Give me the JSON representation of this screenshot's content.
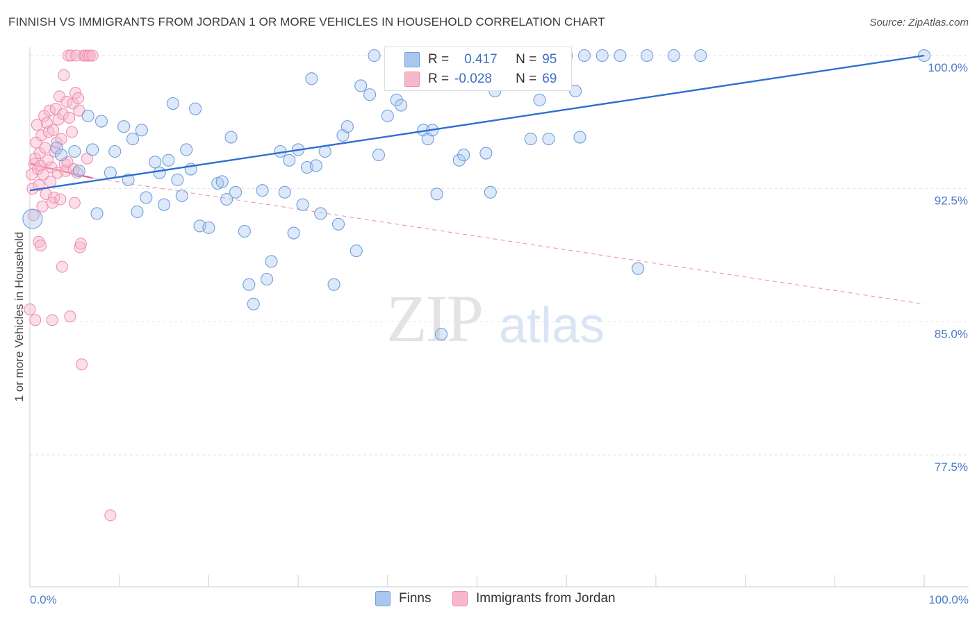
{
  "header": {
    "title": "FINNISH VS IMMIGRANTS FROM JORDAN 1 OR MORE VEHICLES IN HOUSEHOLD CORRELATION CHART",
    "source": "Source: ZipAtlas.com"
  },
  "watermark": {
    "zip": "ZIP",
    "atlas": "atlas"
  },
  "legend": {
    "series": [
      {
        "r_label": "R =",
        "r_value": "0.417",
        "n_label": "N =",
        "n_value": "95",
        "color": "#a9c6ee"
      },
      {
        "r_label": "R =",
        "r_value": "-0.028",
        "n_label": "N =",
        "n_value": "69",
        "color": "#f7b8cb"
      }
    ]
  },
  "bottom_legend": [
    "Finns",
    "Immigrants from Jordan"
  ],
  "chart_data": {
    "type": "scatter",
    "title": "FINNISH VS IMMIGRANTS FROM JORDAN 1 OR MORE VEHICLES IN HOUSEHOLD CORRELATION CHART",
    "ylabel": "1 or more Vehicles in Household",
    "xlabel": "",
    "xlim": [
      0,
      100
    ],
    "ylim": [
      71,
      101.5
    ],
    "x_tick_labels": [
      "0.0%",
      "100.0%"
    ],
    "y_ticks": [
      {
        "value": 100,
        "label": "100.0%"
      },
      {
        "value": 92.5,
        "label": "92.5%"
      },
      {
        "value": 85,
        "label": "85.0%"
      },
      {
        "value": 77.5,
        "label": "77.5%"
      }
    ],
    "grid": true,
    "legend_position": "top-center",
    "series": [
      {
        "name": "Finns",
        "color": "#6f9fdc",
        "fill": "#a9c6ee",
        "trend": {
          "x": [
            0,
            100
          ],
          "y": [
            92.4,
            100.0
          ],
          "style": "solid"
        },
        "points": [
          [
            0.3,
            90.8
          ],
          [
            3,
            94.8
          ],
          [
            3.5,
            94.4
          ],
          [
            5,
            94.6
          ],
          [
            5.5,
            93.5
          ],
          [
            6.5,
            96.6
          ],
          [
            7,
            94.7
          ],
          [
            7.5,
            91.1
          ],
          [
            8,
            96.3
          ],
          [
            9,
            93.4
          ],
          [
            9.5,
            94.6
          ],
          [
            10.5,
            96
          ],
          [
            11,
            93
          ],
          [
            11.5,
            95.3
          ],
          [
            12,
            91.2
          ],
          [
            12.5,
            95.8
          ],
          [
            13,
            92
          ],
          [
            14,
            94
          ],
          [
            14.5,
            93.4
          ],
          [
            15,
            91.6
          ],
          [
            15.5,
            94.1
          ],
          [
            16,
            97.3
          ],
          [
            16.5,
            93
          ],
          [
            17,
            92.1
          ],
          [
            17.5,
            94.7
          ],
          [
            18,
            93.6
          ],
          [
            18.5,
            97
          ],
          [
            19,
            90.4
          ],
          [
            20,
            90.3
          ],
          [
            21,
            92.8
          ],
          [
            21.5,
            92.9
          ],
          [
            22,
            91.9
          ],
          [
            22.5,
            95.4
          ],
          [
            23,
            92.3
          ],
          [
            24,
            90.1
          ],
          [
            24.5,
            87.1
          ],
          [
            25,
            86
          ],
          [
            26,
            92.4
          ],
          [
            26.5,
            87.4
          ],
          [
            27,
            88.4
          ],
          [
            28,
            94.6
          ],
          [
            28.5,
            92.3
          ],
          [
            29,
            94.1
          ],
          [
            29.5,
            90
          ],
          [
            30,
            94.7
          ],
          [
            30.5,
            91.6
          ],
          [
            31,
            93.7
          ],
          [
            31.5,
            98.7
          ],
          [
            32,
            93.8
          ],
          [
            32.5,
            91.1
          ],
          [
            33,
            94.6
          ],
          [
            34,
            87.1
          ],
          [
            34.5,
            90.5
          ],
          [
            35,
            95.5
          ],
          [
            35.5,
            96
          ],
          [
            36.5,
            89
          ],
          [
            37,
            98.3
          ],
          [
            38,
            97.8
          ],
          [
            38.5,
            100
          ],
          [
            39,
            94.4
          ],
          [
            40,
            96.6
          ],
          [
            40.5,
            99.2
          ],
          [
            41,
            97.5
          ],
          [
            41.5,
            97.2
          ],
          [
            42,
            98.7
          ],
          [
            42.5,
            98.4
          ],
          [
            43,
            99.1
          ],
          [
            44,
            95.8
          ],
          [
            44.5,
            95.3
          ],
          [
            45,
            95.8
          ],
          [
            45.5,
            92.2
          ],
          [
            46,
            84.3
          ],
          [
            47,
            100
          ],
          [
            48,
            94.1
          ],
          [
            48.5,
            94.4
          ],
          [
            50,
            99
          ],
          [
            51,
            94.5
          ],
          [
            51.5,
            92.3
          ],
          [
            52,
            98
          ],
          [
            54,
            100
          ],
          [
            55,
            100
          ],
          [
            56,
            95.3
          ],
          [
            57,
            97.5
          ],
          [
            58,
            95.3
          ],
          [
            60,
            100
          ],
          [
            61,
            98
          ],
          [
            61.5,
            95.4
          ],
          [
            62,
            100
          ],
          [
            64,
            100
          ],
          [
            66,
            100
          ],
          [
            68,
            88
          ],
          [
            69,
            100
          ],
          [
            72,
            100
          ],
          [
            75,
            100
          ],
          [
            100,
            100
          ]
        ]
      },
      {
        "name": "Immigrants from Jordan",
        "color": "#f08fb0",
        "fill": "#f7b8cb",
        "trend": {
          "x": [
            0,
            7
          ],
          "y": [
            93.9,
            93.1
          ],
          "style": "solid",
          "extended": {
            "x": [
              7,
              100
            ],
            "y": [
              93.1,
              86.0
            ],
            "style": "dashed"
          }
        },
        "points": [
          [
            0,
            85.7
          ],
          [
            0.2,
            93.3
          ],
          [
            0.3,
            92.5
          ],
          [
            0.4,
            91
          ],
          [
            0.5,
            93.9
          ],
          [
            0.6,
            94.2
          ],
          [
            0.7,
            95.1
          ],
          [
            0.8,
            96.1
          ],
          [
            0.9,
            93.6
          ],
          [
            1,
            89.5
          ],
          [
            1,
            92.7
          ],
          [
            1.1,
            94.5
          ],
          [
            1.2,
            93.8
          ],
          [
            1.3,
            95.5
          ],
          [
            1.4,
            91.5
          ],
          [
            1.5,
            93.3
          ],
          [
            1.6,
            96.6
          ],
          [
            1.7,
            94.8
          ],
          [
            1.8,
            92.2
          ],
          [
            1.9,
            96.2
          ],
          [
            2,
            94.1
          ],
          [
            2.1,
            95.7
          ],
          [
            2.2,
            96.9
          ],
          [
            2.3,
            92.9
          ],
          [
            2.4,
            93.7
          ],
          [
            2.5,
            91.7
          ],
          [
            2.6,
            95.8
          ],
          [
            2.7,
            92
          ],
          [
            2.8,
            94.6
          ],
          [
            2.9,
            97
          ],
          [
            3,
            95.1
          ],
          [
            3.1,
            93.4
          ],
          [
            3.2,
            96.4
          ],
          [
            3.3,
            97.7
          ],
          [
            3.4,
            91.9
          ],
          [
            3.5,
            95.3
          ],
          [
            3.6,
            88.1
          ],
          [
            3.7,
            96.7
          ],
          [
            3.8,
            98.9
          ],
          [
            3.9,
            93.9
          ],
          [
            4,
            93.5
          ],
          [
            4.1,
            97.4
          ],
          [
            4.2,
            94
          ],
          [
            4.3,
            100
          ],
          [
            4.4,
            96.5
          ],
          [
            4.5,
            85.3
          ],
          [
            4.6,
            100
          ],
          [
            4.7,
            95.7
          ],
          [
            4.8,
            97.3
          ],
          [
            4.9,
            93.6
          ],
          [
            5,
            91.7
          ],
          [
            5.1,
            97.9
          ],
          [
            5.2,
            100
          ],
          [
            5.3,
            93.4
          ],
          [
            5.4,
            97.6
          ],
          [
            5.5,
            96.9
          ],
          [
            5.6,
            89.2
          ],
          [
            5.7,
            89.4
          ],
          [
            5.8,
            82.6
          ],
          [
            6,
            100
          ],
          [
            6.2,
            100
          ],
          [
            6.4,
            94.2
          ],
          [
            6.5,
            100
          ],
          [
            6.7,
            100
          ],
          [
            7,
            100
          ],
          [
            0.6,
            85.1
          ],
          [
            1.2,
            89.3
          ],
          [
            2.5,
            85.1
          ],
          [
            9,
            74.1
          ]
        ]
      }
    ]
  }
}
